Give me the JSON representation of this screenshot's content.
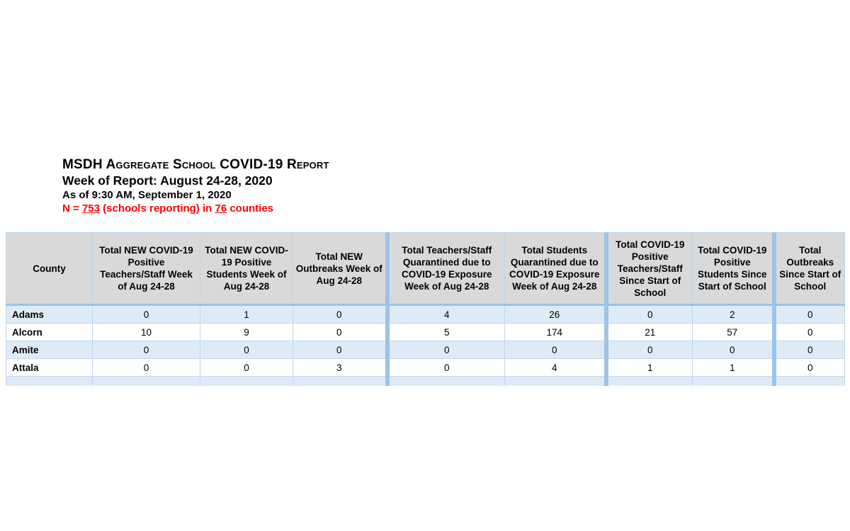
{
  "header": {
    "title": "MSDH Aggregate School COVID-19 Report",
    "week_line": "Week of Report: August 24-28, 2020",
    "as_of_line": "As of 9:30 AM, September 1, 2020",
    "n_line": {
      "prefix": "N = ",
      "schools_count": "753",
      "middle": " (schools reporting) in ",
      "county_count": "76",
      "suffix": " counties"
    }
  },
  "table": {
    "columns": [
      "County",
      "Total NEW COVID-19 Positive Teachers/Staff Week of Aug 24-28",
      "Total NEW COVID-19 Positive Students Week of Aug 24-28",
      "Total NEW Outbreaks Week of Aug 24-28",
      "Total Teachers/Staff Quarantined due to COVID-19 Exposure Week of Aug 24-28",
      "Total Students Quarantined due to COVID-19 Exposure Week of Aug 24-28",
      "Total COVID-19 Positive Teachers/Staff Since Start of School",
      "Total COVID-19 Positive Students Since Start of School",
      "Total Outbreaks Since Start of School"
    ],
    "rows": [
      {
        "county": "Adams",
        "values": [
          0,
          1,
          0,
          4,
          26,
          0,
          2,
          0
        ]
      },
      {
        "county": "Alcorn",
        "values": [
          10,
          9,
          0,
          5,
          174,
          21,
          57,
          0
        ]
      },
      {
        "county": "Amite",
        "values": [
          0,
          0,
          0,
          0,
          0,
          0,
          0,
          0
        ]
      },
      {
        "county": "Attala",
        "values": [
          0,
          0,
          3,
          0,
          4,
          1,
          1,
          0
        ]
      }
    ]
  },
  "colors": {
    "header_bg": "#D9D9D9",
    "band_row_bg": "#DEEBF7",
    "thin_border": "#BDD7EE",
    "thick_border": "#9DC3E6",
    "highlight_red": "#FF0000"
  }
}
